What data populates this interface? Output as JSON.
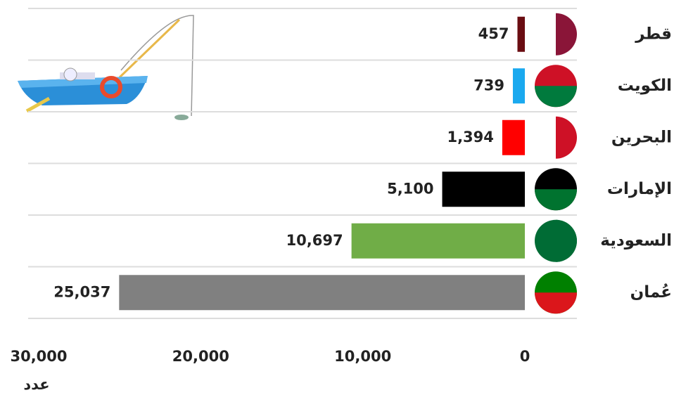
{
  "chart_data": {
    "type": "bar",
    "orientation": "horizontal",
    "categories": [
      "قطر",
      "الكويت",
      "البحرين",
      "الإمارات",
      "السعودية",
      "عُمان"
    ],
    "series": [
      {
        "colors": [
          "#6a0d12",
          "#1aa9ef",
          "#ff0000",
          "#000000",
          "#70ad47",
          "#808080"
        ],
        "values": [
          457,
          739,
          1394,
          5100,
          10697,
          25037
        ],
        "value_labels": [
          "457",
          "739",
          "1,394",
          "5,100",
          "10,697",
          "25,037"
        ]
      }
    ],
    "xlim": [
      0,
      30000
    ],
    "xticks": [
      0,
      {
        "value": 10000,
        "label": "10,000"
      },
      {
        "value": 20000,
        "label": "20,000"
      },
      {
        "value": 30000,
        "label": "30,000"
      }
    ],
    "xlabel": "عدد"
  }
}
